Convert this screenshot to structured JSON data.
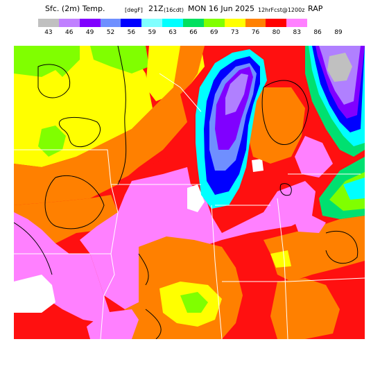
{
  "header": {
    "product": "Sfc. (2m) Temp.",
    "units": "[degF]",
    "valid": "21Z",
    "valid_local": "(16cdt)",
    "date": "MON 16 Jun 2025",
    "run": "12hrFcst@1200z",
    "model": "RAP"
  },
  "legend": {
    "ticks": [
      "43",
      "46",
      "49",
      "52",
      "56",
      "59",
      "63",
      "66",
      "69",
      "73",
      "76",
      "80",
      "83",
      "86",
      "89"
    ],
    "colors": [
      "#c0c0c0",
      "#c080ff",
      "#8000ff",
      "#6f8fff",
      "#0000ff",
      "#80ffff",
      "#00ffff",
      "#00e060",
      "#80ff00",
      "#ffff00",
      "#ff8000",
      "#ff0000",
      "#ff80ff",
      "#ffffff"
    ]
  },
  "map": {
    "colors": {
      "c43": "#c0c0c0",
      "c46": "#b080ff",
      "c49": "#8000ff",
      "c52": "#6f8fff",
      "c56": "#0000ff",
      "c59": "#80ffff",
      "c63": "#00ffff",
      "c66": "#00e070",
      "c69": "#80ff00",
      "c73": "#ffff00",
      "c76": "#ff8000",
      "c80": "#ff1010",
      "c83": "#ff80ff",
      "c86": "#ffffff",
      "c89": "#ffffff"
    }
  }
}
